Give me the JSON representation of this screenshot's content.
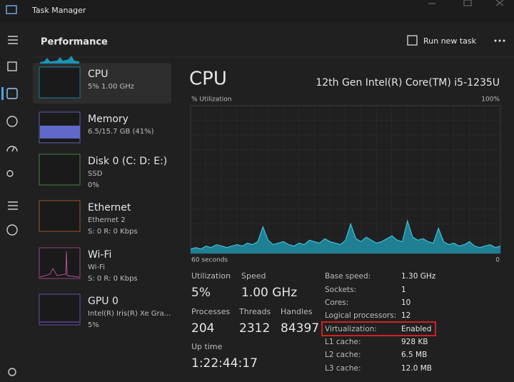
{
  "window": {
    "title": "Task Manager"
  },
  "header": {
    "title": "Performance",
    "run_new_task": "Run new task"
  },
  "sidebar": [
    {
      "name": "CPU",
      "details": [
        "5%  1.00 GHz"
      ]
    },
    {
      "name": "Memory",
      "details": [
        "6.5/15.7 GB (41%)"
      ]
    },
    {
      "name": "Disk 0 (C: D: E:)",
      "details": [
        "SSD",
        "0%"
      ]
    },
    {
      "name": "Ethernet",
      "details": [
        "Ethernet 2",
        "S: 0 R: 0 Kbps"
      ]
    },
    {
      "name": "Wi-Fi",
      "details": [
        "Wi-Fi",
        "S: 0 R: 0 Kbps"
      ]
    },
    {
      "name": "GPU 0",
      "details": [
        "Intel(R) Iris(R) Xe Gra...",
        "5%"
      ]
    }
  ],
  "main": {
    "title": "CPU",
    "model": "12th Gen Intel(R) Core(TM) i5-1235U",
    "graph": {
      "y_label": "% Utilization",
      "y_max_label": "100%",
      "x_left_label": "60 seconds",
      "x_right_label": "0",
      "ylim": [
        0,
        100
      ],
      "values": [
        3,
        4,
        3,
        5,
        4,
        6,
        5,
        4,
        5,
        6,
        5,
        7,
        6,
        8,
        18,
        9,
        6,
        7,
        8,
        6,
        5,
        7,
        6,
        9,
        8,
        7,
        10,
        8,
        7,
        6,
        9,
        20,
        10,
        8,
        11,
        9,
        7,
        8,
        10,
        12,
        9,
        8,
        22,
        11,
        9,
        10,
        8,
        7,
        17,
        8,
        6,
        7,
        5,
        6,
        8,
        5,
        4,
        5,
        6,
        4,
        5
      ]
    },
    "stats": [
      {
        "label": "Utilization",
        "value": "5%"
      },
      {
        "label": "Speed",
        "value": "1.00 GHz"
      },
      {
        "label": "Processes",
        "value": "204"
      },
      {
        "label": "Threads",
        "value": "2312"
      },
      {
        "label": "Handles",
        "value": "84397"
      },
      {
        "label": "Up time",
        "value": "1:22:44:17"
      }
    ],
    "specs": [
      {
        "label": "Base speed:",
        "value": "1.30 GHz"
      },
      {
        "label": "Sockets:",
        "value": "1"
      },
      {
        "label": "Cores:",
        "value": "10"
      },
      {
        "label": "Logical processors:",
        "value": "12"
      },
      {
        "label": "Virtualization:",
        "value": "Enabled"
      },
      {
        "label": "L1 cache:",
        "value": "928 KB"
      },
      {
        "label": "L2 cache:",
        "value": "6.5 MB"
      },
      {
        "label": "L3 cache:",
        "value": "12.0 MB"
      }
    ]
  }
}
